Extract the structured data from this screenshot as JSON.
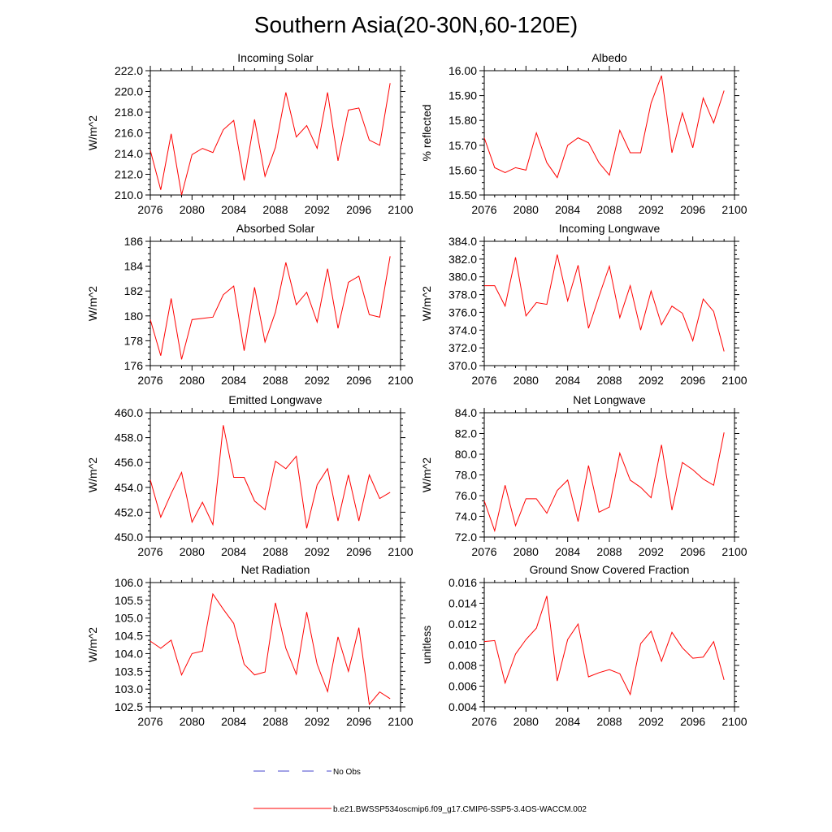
{
  "figure": {
    "title": "Southern Asia(20-30N,60-120E)",
    "legend": {
      "obs_label": "No Obs",
      "obs_color": "#4444cc",
      "model_label": "b.e21.BWSSP534oscmip6.f09_g17.CMIP6-SSP5-3.4OS-WACCM.002",
      "model_color": "#ff0000"
    }
  },
  "chart_data": [
    {
      "type": "line",
      "title": "Incoming Solar",
      "ylabel": "W/m^2",
      "xlabel": "",
      "xlim": [
        2076,
        2100
      ],
      "ylim": [
        210,
        222
      ],
      "xticks": [
        "2076",
        "2080",
        "2084",
        "2088",
        "2092",
        "2096",
        "2100"
      ],
      "yticks": [
        "210.0",
        "212.0",
        "214.0",
        "216.0",
        "218.0",
        "220.0",
        "222.0"
      ],
      "series": [
        {
          "name": "b.e21.BWSSP534oscmip6.f09_g17.CMIP6-SSP5-3.4OS-WACCM.002",
          "x": [
            2076,
            2077,
            2078,
            2079,
            2080,
            2081,
            2082,
            2083,
            2084,
            2085,
            2086,
            2087,
            2088,
            2089,
            2090,
            2091,
            2092,
            2093,
            2094,
            2095,
            2096,
            2097,
            2098,
            2099
          ],
          "values": [
            214.3,
            210.5,
            215.9,
            210.0,
            213.9,
            214.5,
            214.1,
            216.3,
            217.2,
            211.4,
            217.3,
            211.8,
            214.6,
            219.9,
            215.6,
            216.7,
            214.5,
            219.9,
            213.3,
            218.2,
            218.4,
            215.3,
            214.8,
            220.8
          ]
        }
      ]
    },
    {
      "type": "line",
      "title": "Albedo",
      "ylabel": "% reflected",
      "xlabel": "",
      "xlim": [
        2076,
        2100
      ],
      "ylim": [
        15.5,
        16.0
      ],
      "xticks": [
        "2076",
        "2080",
        "2084",
        "2088",
        "2092",
        "2096",
        "2100"
      ],
      "yticks": [
        "15.50",
        "15.60",
        "15.70",
        "15.80",
        "15.90",
        "16.00"
      ],
      "series": [
        {
          "name": "b.e21.BWSSP534oscmip6.f09_g17.CMIP6-SSP5-3.4OS-WACCM.002",
          "x": [
            2076,
            2077,
            2078,
            2079,
            2080,
            2081,
            2082,
            2083,
            2084,
            2085,
            2086,
            2087,
            2088,
            2089,
            2090,
            2091,
            2092,
            2093,
            2094,
            2095,
            2096,
            2097,
            2098,
            2099
          ],
          "values": [
            15.73,
            15.61,
            15.59,
            15.61,
            15.6,
            15.75,
            15.63,
            15.57,
            15.7,
            15.73,
            15.71,
            15.63,
            15.58,
            15.76,
            15.67,
            15.67,
            15.87,
            15.98,
            15.67,
            15.83,
            15.69,
            15.89,
            15.79,
            15.92
          ]
        }
      ]
    },
    {
      "type": "line",
      "title": "Absorbed Solar",
      "ylabel": "W/m^2",
      "xlabel": "",
      "xlim": [
        2076,
        2100
      ],
      "ylim": [
        176,
        186
      ],
      "xticks": [
        "2076",
        "2080",
        "2084",
        "2088",
        "2092",
        "2096",
        "2100"
      ],
      "yticks": [
        "176",
        "178",
        "180",
        "182",
        "184",
        "186"
      ],
      "series": [
        {
          "name": "b.e21.BWSSP534oscmip6.f09_g17.CMIP6-SSP5-3.4OS-WACCM.002",
          "x": [
            2076,
            2077,
            2078,
            2079,
            2080,
            2081,
            2082,
            2083,
            2084,
            2085,
            2086,
            2087,
            2088,
            2089,
            2090,
            2091,
            2092,
            2093,
            2094,
            2095,
            2096,
            2097,
            2098,
            2099
          ],
          "values": [
            179.7,
            176.8,
            181.4,
            176.5,
            179.7,
            179.8,
            179.9,
            181.7,
            182.4,
            177.2,
            182.3,
            177.9,
            180.3,
            184.3,
            180.9,
            181.9,
            179.5,
            183.8,
            179.0,
            182.7,
            183.2,
            180.1,
            179.9,
            184.8
          ]
        }
      ]
    },
    {
      "type": "line",
      "title": "Incoming Longwave",
      "ylabel": "W/m^2",
      "xlabel": "",
      "xlim": [
        2076,
        2100
      ],
      "ylim": [
        370,
        384
      ],
      "xticks": [
        "2076",
        "2080",
        "2084",
        "2088",
        "2092",
        "2096",
        "2100"
      ],
      "yticks": [
        "370.0",
        "372.0",
        "374.0",
        "376.0",
        "378.0",
        "380.0",
        "382.0",
        "384.0"
      ],
      "series": [
        {
          "name": "b.e21.BWSSP534oscmip6.f09_g17.CMIP6-SSP5-3.4OS-WACCM.002",
          "x": [
            2076,
            2077,
            2078,
            2079,
            2080,
            2081,
            2082,
            2083,
            2084,
            2085,
            2086,
            2087,
            2088,
            2089,
            2090,
            2091,
            2092,
            2093,
            2094,
            2095,
            2096,
            2097,
            2098,
            2099
          ],
          "values": [
            379.0,
            379.0,
            376.7,
            382.2,
            375.6,
            377.1,
            376.9,
            382.5,
            377.3,
            381.3,
            374.2,
            377.8,
            381.2,
            375.4,
            379.0,
            374.0,
            378.4,
            374.6,
            376.7,
            375.9,
            372.8,
            377.5,
            376.1,
            371.6
          ]
        }
      ]
    },
    {
      "type": "line",
      "title": "Emitted Longwave",
      "ylabel": "W/m^2",
      "xlabel": "",
      "xlim": [
        2076,
        2100
      ],
      "ylim": [
        450,
        460
      ],
      "xticks": [
        "2076",
        "2080",
        "2084",
        "2088",
        "2092",
        "2096",
        "2100"
      ],
      "yticks": [
        "450.0",
        "452.0",
        "454.0",
        "456.0",
        "458.0",
        "460.0"
      ],
      "series": [
        {
          "name": "b.e21.BWSSP534oscmip6.f09_g17.CMIP6-SSP5-3.4OS-WACCM.002",
          "x": [
            2076,
            2077,
            2078,
            2079,
            2080,
            2081,
            2082,
            2083,
            2084,
            2085,
            2086,
            2087,
            2088,
            2089,
            2090,
            2091,
            2092,
            2093,
            2094,
            2095,
            2096,
            2097,
            2098,
            2099
          ],
          "values": [
            454.6,
            451.6,
            453.5,
            455.2,
            451.2,
            452.8,
            451.0,
            459.0,
            454.8,
            454.8,
            452.9,
            452.2,
            456.1,
            455.5,
            456.5,
            450.7,
            454.2,
            455.5,
            451.3,
            455.0,
            451.3,
            455.0,
            453.1,
            453.6
          ]
        }
      ]
    },
    {
      "type": "line",
      "title": "Net Longwave",
      "ylabel": "W/m^2",
      "xlabel": "",
      "xlim": [
        2076,
        2100
      ],
      "ylim": [
        72,
        84
      ],
      "xticks": [
        "2076",
        "2080",
        "2084",
        "2088",
        "2092",
        "2096",
        "2100"
      ],
      "yticks": [
        "72.0",
        "74.0",
        "76.0",
        "78.0",
        "80.0",
        "82.0",
        "84.0"
      ],
      "series": [
        {
          "name": "b.e21.BWSSP534oscmip6.f09_g17.CMIP6-SSP5-3.4OS-WACCM.002",
          "x": [
            2076,
            2077,
            2078,
            2079,
            2080,
            2081,
            2082,
            2083,
            2084,
            2085,
            2086,
            2087,
            2088,
            2089,
            2090,
            2091,
            2092,
            2093,
            2094,
            2095,
            2096,
            2097,
            2098,
            2099
          ],
          "values": [
            75.5,
            72.6,
            77.0,
            73.1,
            75.7,
            75.7,
            74.3,
            76.5,
            77.5,
            73.5,
            78.9,
            74.4,
            74.9,
            80.1,
            77.5,
            76.8,
            75.8,
            80.9,
            74.6,
            79.2,
            78.5,
            77.6,
            77.0,
            82.1
          ]
        }
      ]
    },
    {
      "type": "line",
      "title": "Net Radiation",
      "ylabel": "W/m^2",
      "xlabel": "",
      "xlim": [
        2076,
        2100
      ],
      "ylim": [
        102.5,
        106.0
      ],
      "xticks": [
        "2076",
        "2080",
        "2084",
        "2088",
        "2092",
        "2096",
        "2100"
      ],
      "yticks": [
        "102.5",
        "103.0",
        "103.5",
        "104.0",
        "104.5",
        "105.0",
        "105.5",
        "106.0"
      ],
      "series": [
        {
          "name": "b.e21.BWSSP534oscmip6.f09_g17.CMIP6-SSP5-3.4OS-WACCM.002",
          "x": [
            2076,
            2077,
            2078,
            2079,
            2080,
            2081,
            2082,
            2083,
            2084,
            2085,
            2086,
            2087,
            2088,
            2089,
            2090,
            2091,
            2092,
            2093,
            2094,
            2095,
            2096,
            2097,
            2098,
            2099
          ],
          "values": [
            104.35,
            104.15,
            104.38,
            103.4,
            104.0,
            104.07,
            105.68,
            105.25,
            104.85,
            103.7,
            103.4,
            103.48,
            105.43,
            104.15,
            103.42,
            105.17,
            103.7,
            102.93,
            104.47,
            103.5,
            104.73,
            102.57,
            102.92,
            102.73
          ]
        }
      ]
    },
    {
      "type": "line",
      "title": "Ground Snow Covered Fraction",
      "ylabel": "unitless",
      "xlabel": "",
      "xlim": [
        2076,
        2100
      ],
      "ylim": [
        0.004,
        0.016
      ],
      "xticks": [
        "2076",
        "2080",
        "2084",
        "2088",
        "2092",
        "2096",
        "2100"
      ],
      "yticks": [
        "0.004",
        "0.006",
        "0.008",
        "0.010",
        "0.012",
        "0.014",
        "0.016"
      ],
      "series": [
        {
          "name": "b.e21.BWSSP534oscmip6.f09_g17.CMIP6-SSP5-3.4OS-WACCM.002",
          "x": [
            2076,
            2077,
            2078,
            2079,
            2080,
            2081,
            2082,
            2083,
            2084,
            2085,
            2086,
            2087,
            2088,
            2089,
            2090,
            2091,
            2092,
            2093,
            2094,
            2095,
            2096,
            2097,
            2098,
            2099
          ],
          "values": [
            0.0103,
            0.0104,
            0.0063,
            0.0091,
            0.0105,
            0.0116,
            0.0147,
            0.0065,
            0.0105,
            0.012,
            0.0069,
            0.0073,
            0.0076,
            0.0072,
            0.0052,
            0.0101,
            0.0113,
            0.0084,
            0.0112,
            0.0097,
            0.0087,
            0.0088,
            0.0103,
            0.0066
          ]
        }
      ]
    }
  ]
}
